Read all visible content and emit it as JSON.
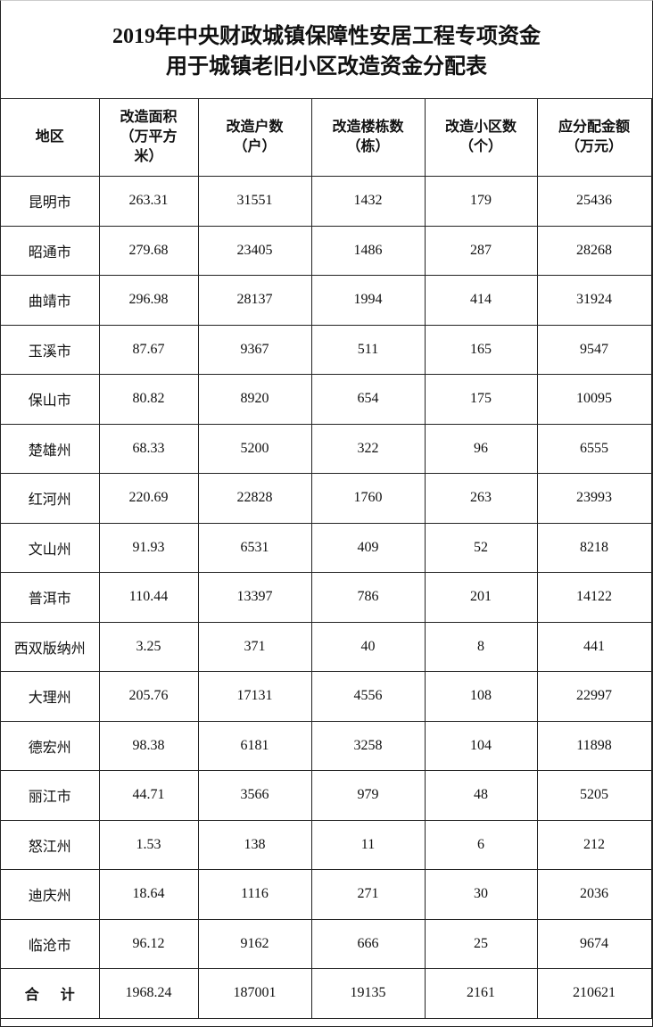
{
  "title": {
    "line1": "2019年中央财政城镇保障性安居工程专项资金",
    "line2": "用于城镇老旧小区改造资金分配表"
  },
  "table": {
    "headers": [
      {
        "lines": [
          "地区"
        ]
      },
      {
        "lines": [
          "改造面积",
          "（万平方",
          "米）"
        ]
      },
      {
        "lines": [
          "改造户数",
          "（户）"
        ]
      },
      {
        "lines": [
          "改造楼栋数",
          "（栋）"
        ]
      },
      {
        "lines": [
          "改造小区数",
          "（个）"
        ]
      },
      {
        "lines": [
          "应分配金额",
          "（万元）"
        ]
      }
    ],
    "rows": [
      [
        "昆明市",
        "263.31",
        "31551",
        "1432",
        "179",
        "25436"
      ],
      [
        "昭通市",
        "279.68",
        "23405",
        "1486",
        "287",
        "28268"
      ],
      [
        "曲靖市",
        "296.98",
        "28137",
        "1994",
        "414",
        "31924"
      ],
      [
        "玉溪市",
        "87.67",
        "9367",
        "511",
        "165",
        "9547"
      ],
      [
        "保山市",
        "80.82",
        "8920",
        "654",
        "175",
        "10095"
      ],
      [
        "楚雄州",
        "68.33",
        "5200",
        "322",
        "96",
        "6555"
      ],
      [
        "红河州",
        "220.69",
        "22828",
        "1760",
        "263",
        "23993"
      ],
      [
        "文山州",
        "91.93",
        "6531",
        "409",
        "52",
        "8218"
      ],
      [
        "普洱市",
        "110.44",
        "13397",
        "786",
        "201",
        "14122"
      ],
      [
        "西双版纳州",
        "3.25",
        "371",
        "40",
        "8",
        "441"
      ],
      [
        "大理州",
        "205.76",
        "17131",
        "4556",
        "108",
        "22997"
      ],
      [
        "德宏州",
        "98.38",
        "6181",
        "3258",
        "104",
        "11898"
      ],
      [
        "丽江市",
        "44.71",
        "3566",
        "979",
        "48",
        "5205"
      ],
      [
        "怒江州",
        "1.53",
        "138",
        "11",
        "6",
        "212"
      ],
      [
        "迪庆州",
        "18.64",
        "1116",
        "271",
        "30",
        "2036"
      ],
      [
        "临沧市",
        "96.12",
        "9162",
        "666",
        "25",
        "9674"
      ]
    ],
    "total": [
      "合 计",
      "1968.24",
      "187001",
      "19135",
      "2161",
      "210621"
    ]
  }
}
